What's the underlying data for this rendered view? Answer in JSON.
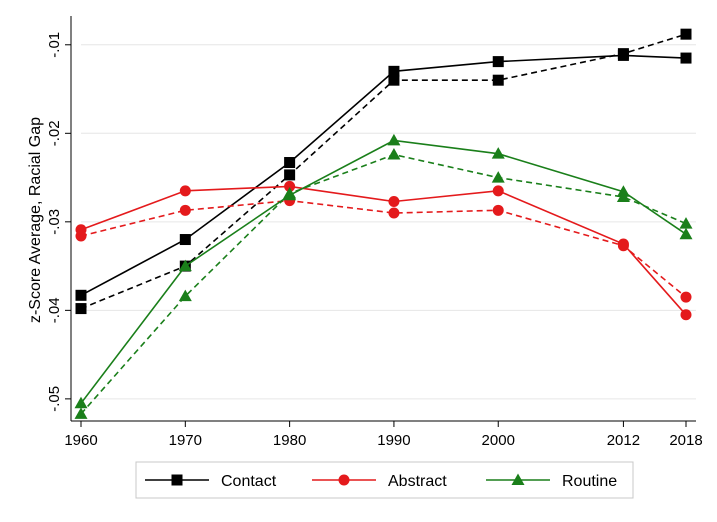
{
  "chart_data": {
    "type": "line",
    "title": "",
    "xlabel": "",
    "ylabel": "z-Score Average, Racial Gap",
    "x": [
      1960,
      1970,
      1980,
      1990,
      2000,
      2012,
      2018
    ],
    "x_ticks": [
      {
        "value": 1960,
        "label": "1960"
      },
      {
        "value": 1970,
        "label": "1970"
      },
      {
        "value": 1980,
        "label": "1980"
      },
      {
        "value": 1990,
        "label": "1990"
      },
      {
        "value": 2000,
        "label": "2000"
      },
      {
        "value": 2012,
        "label": "2012"
      },
      {
        "value": 2018,
        "label": "2018"
      }
    ],
    "y_ticks": [
      {
        "value": -0.01,
        "label": "-.01"
      },
      {
        "value": -0.02,
        "label": "-.02"
      },
      {
        "value": -0.03,
        "label": "-.03"
      },
      {
        "value": -0.04,
        "label": "-.04"
      },
      {
        "value": -0.05,
        "label": "-.05"
      }
    ],
    "xlim": [
      1960,
      2018
    ],
    "ylim": [
      -0.0525,
      -0.0072
    ],
    "grid": true,
    "legend_position": "bottom",
    "series": [
      {
        "name": "Contact",
        "color": "#000000",
        "marker": "square",
        "style": "solid",
        "values": [
          -0.0383,
          -0.032,
          -0.0233,
          -0.013,
          -0.0119,
          -0.0112,
          -0.0115
        ]
      },
      {
        "name": "",
        "color": "#000000",
        "marker": "square",
        "style": "dashed",
        "values": [
          -0.0398,
          -0.035,
          -0.0247,
          -0.014,
          -0.014,
          -0.011,
          -0.0088
        ]
      },
      {
        "name": "Abstract",
        "color": "#e41a1c",
        "marker": "circle",
        "style": "solid",
        "values": [
          -0.0309,
          -0.0265,
          -0.026,
          -0.0277,
          -0.0265,
          -0.0325,
          -0.0405
        ]
      },
      {
        "name": "",
        "color": "#e41a1c",
        "marker": "circle",
        "style": "dashed",
        "values": [
          -0.0316,
          -0.0287,
          -0.0276,
          -0.029,
          -0.0287,
          -0.0327,
          -0.0385
        ]
      },
      {
        "name": "Routine",
        "color": "#1a7f1a",
        "marker": "triangle",
        "style": "solid",
        "values": [
          -0.0505,
          -0.035,
          -0.027,
          -0.0208,
          -0.0223,
          -0.0266,
          -0.0314
        ]
      },
      {
        "name": "",
        "color": "#1a7f1a",
        "marker": "triangle",
        "style": "dashed",
        "values": [
          -0.0517,
          -0.0384,
          -0.0268,
          -0.0224,
          -0.025,
          -0.0272,
          -0.0302
        ]
      }
    ]
  }
}
